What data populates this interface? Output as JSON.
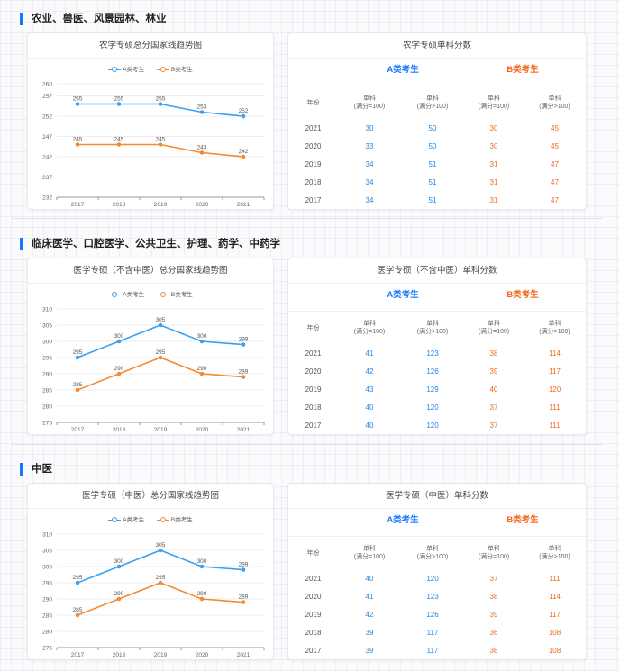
{
  "legend": {
    "a": "A类考生",
    "b": "B类考生"
  },
  "table_headers": {
    "year": "年份",
    "single": "单科",
    "le100": "(满分=100)",
    "gt100": "(满分>100)",
    "group_a": "A类考生",
    "group_b": "B类考生"
  },
  "colors": {
    "series_a": "#3aa0f0",
    "series_b": "#f5892e",
    "accent": "#1677ff"
  },
  "sections": [
    {
      "title": "农业、兽医、风景园林、林业",
      "chart_title": "农学专硕总分国家线趋势图",
      "table_title": "农学专硕单科分数",
      "rows": [
        {
          "year": "2021",
          "a1": "30",
          "a2": "50",
          "b1": "30",
          "b2": "45"
        },
        {
          "year": "2020",
          "a1": "33",
          "a2": "50",
          "b1": "30",
          "b2": "45"
        },
        {
          "year": "2019",
          "a1": "34",
          "a2": "51",
          "b1": "31",
          "b2": "47"
        },
        {
          "year": "2018",
          "a1": "34",
          "a2": "51",
          "b1": "31",
          "b2": "47"
        },
        {
          "year": "2017",
          "a1": "34",
          "a2": "51",
          "b1": "31",
          "b2": "47"
        }
      ]
    },
    {
      "title": "临床医学、口腔医学、公共卫生、护理、药学、中药学",
      "chart_title": "医学专硕（不含中医）总分国家线趋势图",
      "table_title": "医学专硕（不含中医）单科分数",
      "rows": [
        {
          "year": "2021",
          "a1": "41",
          "a2": "123",
          "b1": "38",
          "b2": "114"
        },
        {
          "year": "2020",
          "a1": "42",
          "a2": "126",
          "b1": "39",
          "b2": "117"
        },
        {
          "year": "2019",
          "a1": "43",
          "a2": "129",
          "b1": "40",
          "b2": "120"
        },
        {
          "year": "2018",
          "a1": "40",
          "a2": "120",
          "b1": "37",
          "b2": "111"
        },
        {
          "year": "2017",
          "a1": "40",
          "a2": "120",
          "b1": "37",
          "b2": "111"
        }
      ]
    },
    {
      "title": "中医",
      "chart_title": "医学专硕（中医）总分国家线趋势图",
      "table_title": "医学专硕（中医）单科分数",
      "rows": [
        {
          "year": "2021",
          "a1": "40",
          "a2": "120",
          "b1": "37",
          "b2": "111"
        },
        {
          "year": "2020",
          "a1": "41",
          "a2": "123",
          "b1": "38",
          "b2": "114"
        },
        {
          "year": "2019",
          "a1": "42",
          "a2": "126",
          "b1": "39",
          "b2": "117"
        },
        {
          "year": "2018",
          "a1": "39",
          "a2": "117",
          "b1": "36",
          "b2": "108"
        },
        {
          "year": "2017",
          "a1": "39",
          "a2": "117",
          "b1": "36",
          "b2": "108"
        }
      ]
    }
  ],
  "chart_data": [
    {
      "type": "line",
      "title": "农学专硕总分国家线趋势图",
      "categories": [
        "2017",
        "2018",
        "2019",
        "2020",
        "2021"
      ],
      "series": [
        {
          "name": "A类考生",
          "values": [
            255,
            255,
            255,
            253,
            252
          ]
        },
        {
          "name": "B类考生",
          "values": [
            245,
            245,
            245,
            243,
            242
          ]
        }
      ],
      "yticks": [
        232,
        237,
        242,
        247,
        252,
        257,
        260
      ],
      "ylim": [
        232,
        260
      ],
      "legend": "top",
      "grid": true
    },
    {
      "type": "line",
      "title": "医学专硕（不含中医）总分国家线趋势图",
      "categories": [
        "2017",
        "2018",
        "2019",
        "2020",
        "2021"
      ],
      "series": [
        {
          "name": "A类考生",
          "values": [
            295,
            300,
            305,
            300,
            299
          ]
        },
        {
          "name": "B类考生",
          "values": [
            285,
            290,
            295,
            290,
            289
          ]
        }
      ],
      "yticks": [
        275,
        280,
        285,
        290,
        295,
        300,
        305,
        310
      ],
      "ylim": [
        275,
        310
      ],
      "legend": "top",
      "grid": true
    },
    {
      "type": "line",
      "title": "医学专硕（中医）总分国家线趋势图",
      "categories": [
        "2017",
        "2018",
        "2019",
        "2020",
        "2021"
      ],
      "series": [
        {
          "name": "A类考生",
          "values": [
            295,
            300,
            305,
            300,
            299
          ]
        },
        {
          "name": "B类考生",
          "values": [
            285,
            290,
            295,
            290,
            289
          ]
        }
      ],
      "yticks": [
        275,
        280,
        285,
        290,
        295,
        300,
        305,
        310
      ],
      "ylim": [
        275,
        310
      ],
      "legend": "top",
      "grid": true
    }
  ]
}
